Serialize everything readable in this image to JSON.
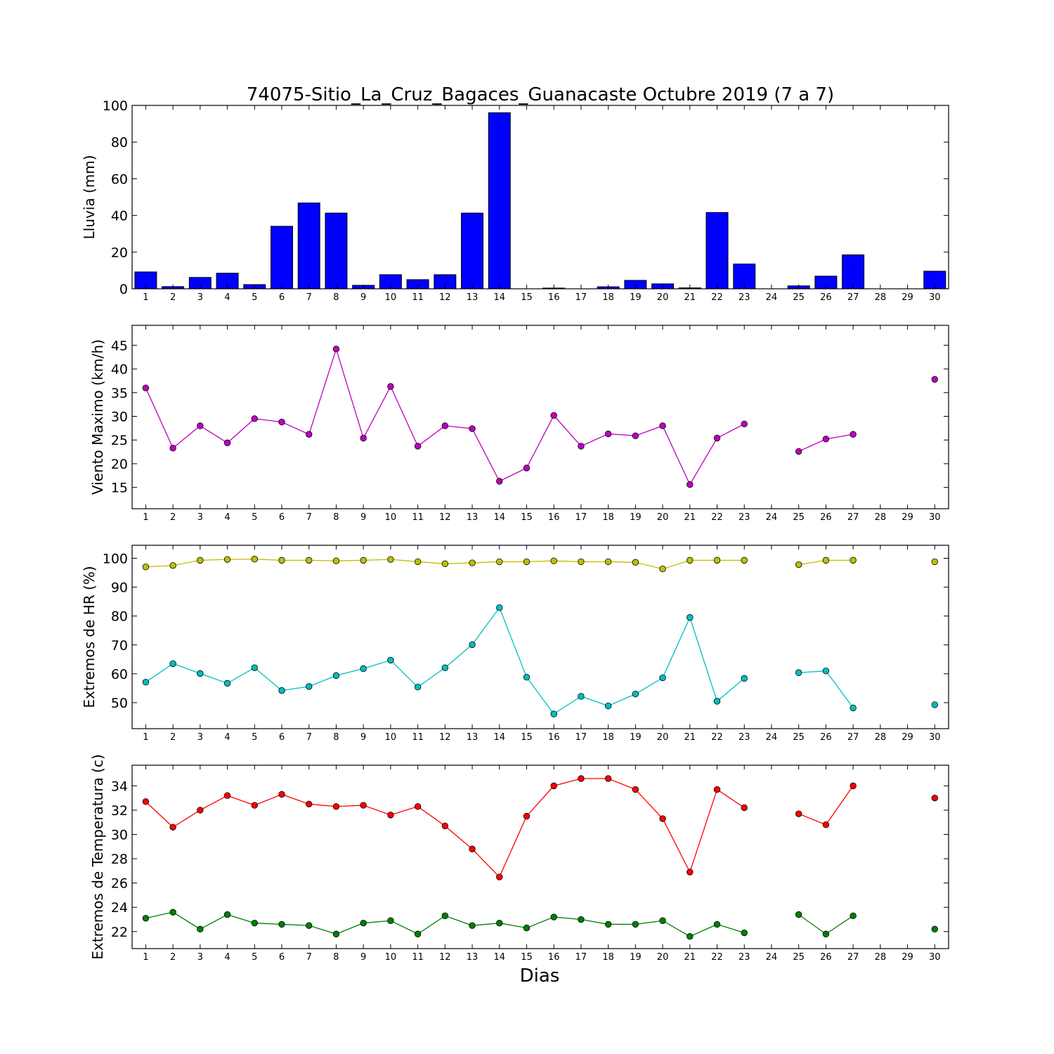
{
  "title": "74075-Sitio_La_Cruz_Bagaces_Guanacaste Octubre 2019  (7 a 7)",
  "xlabel": "Dias",
  "days": [
    1,
    2,
    3,
    4,
    5,
    6,
    7,
    8,
    9,
    10,
    11,
    12,
    13,
    14,
    15,
    16,
    17,
    18,
    19,
    20,
    21,
    22,
    23,
    24,
    25,
    26,
    27,
    28,
    29,
    30
  ],
  "colors": {
    "bar": "#0000ff",
    "wind": "#bf00bf",
    "hr_max": "#bfbf00",
    "hr_min": "#00bfbf",
    "temp_max": "#ff0000",
    "temp_min": "#008000"
  },
  "chart_data": [
    {
      "type": "bar",
      "ylabel": "Lluvia (mm)",
      "ylim": [
        0,
        100
      ],
      "yticks": [
        0,
        20,
        40,
        60,
        80,
        100
      ],
      "x": [
        1,
        2,
        3,
        4,
        5,
        6,
        7,
        8,
        9,
        10,
        11,
        12,
        13,
        14,
        15,
        16,
        17,
        18,
        19,
        20,
        21,
        22,
        23,
        24,
        25,
        26,
        27,
        28,
        29,
        30
      ],
      "values": [
        9.2,
        1.2,
        6.2,
        8.5,
        2.3,
        34.1,
        46.8,
        41.3,
        1.9,
        7.7,
        5.0,
        7.7,
        41.3,
        96.0,
        0,
        0.4,
        0,
        1.1,
        4.6,
        2.7,
        0.5,
        41.6,
        13.5,
        0,
        1.6,
        6.9,
        18.5,
        0,
        0,
        9.6
      ]
    },
    {
      "type": "line",
      "ylabel": "Viento Maximo (km/h)",
      "ylim": [
        10.5,
        49.2
      ],
      "yticks": [
        15,
        20,
        25,
        30,
        35,
        40,
        45
      ],
      "x": [
        1,
        2,
        3,
        4,
        5,
        6,
        7,
        8,
        9,
        10,
        11,
        12,
        13,
        14,
        15,
        16,
        17,
        18,
        19,
        20,
        21,
        22,
        23,
        24,
        25,
        26,
        27,
        28,
        29,
        30
      ],
      "series": [
        {
          "color_key": "wind",
          "values": [
            36.0,
            23.3,
            28.0,
            24.4,
            29.5,
            28.8,
            26.2,
            44.2,
            25.4,
            36.3,
            23.7,
            28.0,
            27.4,
            16.3,
            19.1,
            30.2,
            23.7,
            26.3,
            25.9,
            28.0,
            15.6,
            25.4,
            28.4,
            null,
            22.6,
            25.2,
            26.2,
            null,
            null,
            37.8
          ]
        }
      ]
    },
    {
      "type": "line",
      "ylabel": "Extremos de HR (%)",
      "ylim": [
        41,
        104.5
      ],
      "yticks": [
        50,
        60,
        70,
        80,
        90,
        100
      ],
      "x": [
        1,
        2,
        3,
        4,
        5,
        6,
        7,
        8,
        9,
        10,
        11,
        12,
        13,
        14,
        15,
        16,
        17,
        18,
        19,
        20,
        21,
        22,
        23,
        24,
        25,
        26,
        27,
        28,
        29,
        30
      ],
      "series": [
        {
          "color_key": "hr_max",
          "values": [
            97.0,
            97.5,
            99.3,
            99.6,
            99.7,
            99.3,
            99.3,
            99.1,
            99.3,
            99.6,
            98.8,
            98.1,
            98.4,
            98.8,
            98.8,
            99.1,
            98.8,
            98.8,
            98.6,
            96.3,
            99.3,
            99.3,
            99.3,
            null,
            97.8,
            99.3,
            99.3,
            null,
            null,
            98.8
          ]
        },
        {
          "color_key": "hr_min",
          "values": [
            57.1,
            63.5,
            60.1,
            56.7,
            62.1,
            54.2,
            55.6,
            59.4,
            61.8,
            64.7,
            55.4,
            62.1,
            70.1,
            82.9,
            58.8,
            46.1,
            52.2,
            48.9,
            53.0,
            58.6,
            79.5,
            50.5,
            58.4,
            null,
            60.4,
            61.0,
            48.2,
            null,
            null,
            49.3
          ]
        }
      ]
    },
    {
      "type": "line",
      "ylabel": "Extremos de Temperatura (c)",
      "ylim": [
        20.6,
        35.7
      ],
      "yticks": [
        22,
        24,
        26,
        28,
        30,
        32,
        34
      ],
      "x": [
        1,
        2,
        3,
        4,
        5,
        6,
        7,
        8,
        9,
        10,
        11,
        12,
        13,
        14,
        15,
        16,
        17,
        18,
        19,
        20,
        21,
        22,
        23,
        24,
        25,
        26,
        27,
        28,
        29,
        30
      ],
      "series": [
        {
          "color_key": "temp_max",
          "values": [
            32.7,
            30.6,
            32.0,
            33.2,
            32.4,
            33.3,
            32.5,
            32.3,
            32.4,
            31.6,
            32.3,
            30.7,
            28.8,
            26.5,
            31.5,
            34.0,
            34.6,
            34.6,
            33.7,
            31.3,
            26.9,
            33.7,
            32.2,
            null,
            31.7,
            30.8,
            34.0,
            null,
            null,
            33.0
          ]
        },
        {
          "color_key": "temp_min",
          "values": [
            23.1,
            23.6,
            22.2,
            23.4,
            22.7,
            22.6,
            22.5,
            21.8,
            22.7,
            22.9,
            21.8,
            23.3,
            22.5,
            22.7,
            22.3,
            23.2,
            23.0,
            22.6,
            22.6,
            22.9,
            21.6,
            22.6,
            21.9,
            null,
            23.4,
            21.8,
            23.3,
            null,
            null,
            22.2
          ]
        }
      ]
    }
  ]
}
